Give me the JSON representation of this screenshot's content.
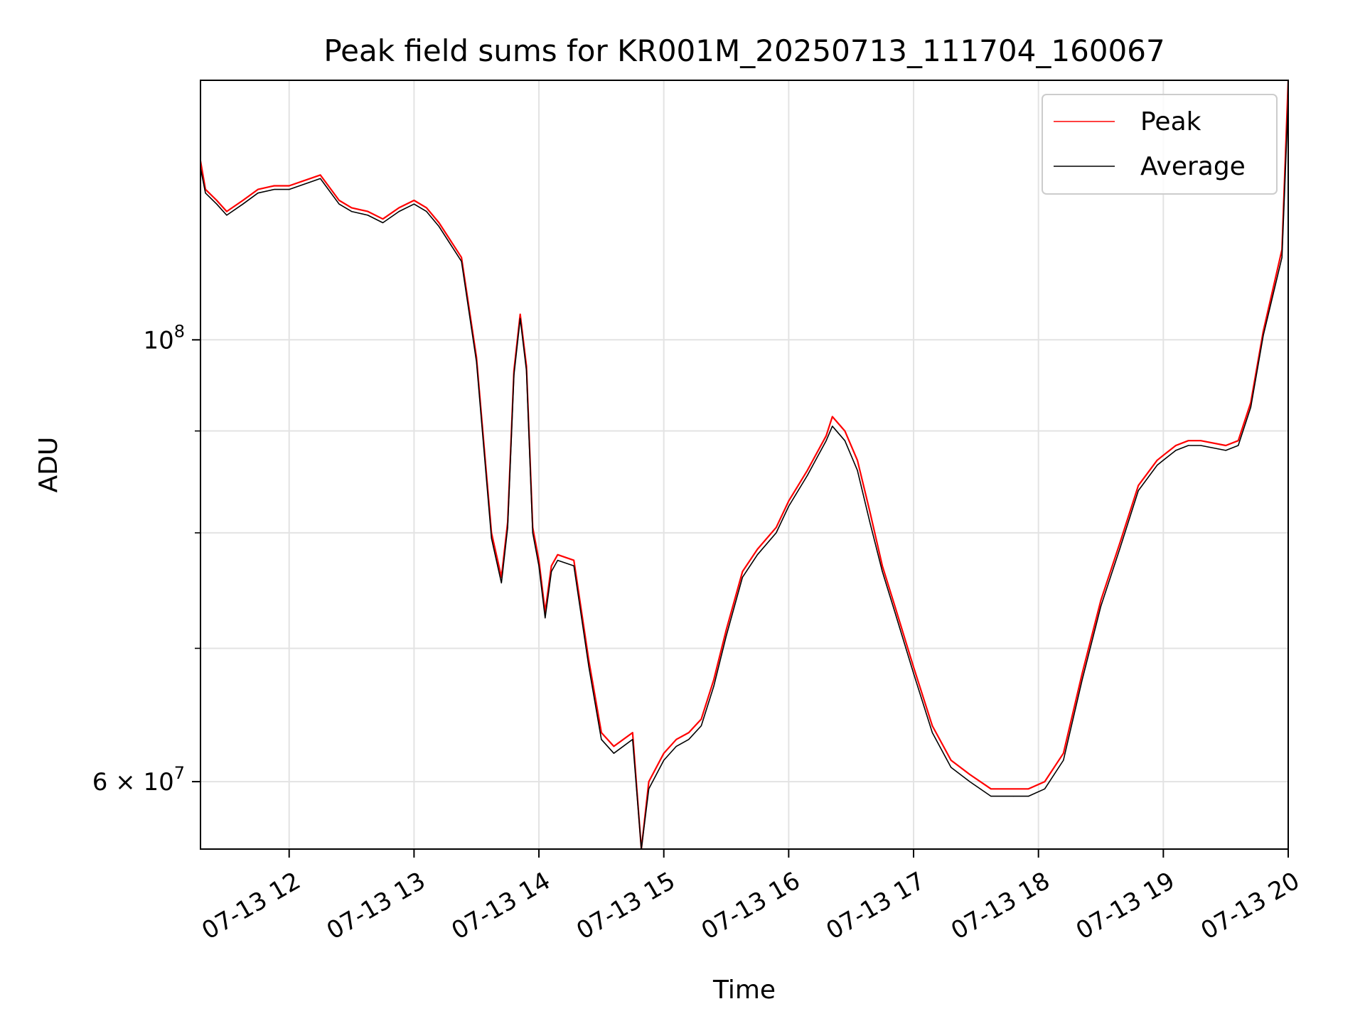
{
  "chart_data": {
    "type": "line",
    "title": "Peak field sums for KR001M_20250713_111704_160067",
    "xlabel": "Time",
    "ylabel": "ADU",
    "x_unit": "hours (2025-07-13, HH)",
    "xlim": [
      11.29,
      20.0
    ],
    "ylim": [
      55500000,
      135000000
    ],
    "yscale": "log",
    "grid": true,
    "legend_position": "top-right",
    "x_ticks": [
      {
        "value": 12,
        "label": "07-13 12"
      },
      {
        "value": 13,
        "label": "07-13 13"
      },
      {
        "value": 14,
        "label": "07-13 14"
      },
      {
        "value": 15,
        "label": "07-13 15"
      },
      {
        "value": 16,
        "label": "07-13 16"
      },
      {
        "value": 17,
        "label": "07-13 17"
      },
      {
        "value": 18,
        "label": "07-13 18"
      },
      {
        "value": 19,
        "label": "07-13 19"
      },
      {
        "value": 20,
        "label": "07-13 20"
      }
    ],
    "y_major_ticks": [
      {
        "value": 60000000,
        "mantissa": "6",
        "exponent": "7"
      },
      {
        "value": 100000000,
        "mantissa": "",
        "exponent": "8"
      }
    ],
    "y_minor_ticks": [
      70000000,
      80000000,
      90000000
    ],
    "series": [
      {
        "name": "Peak",
        "color": "#ff0000",
        "x": [
          11.29,
          11.33,
          11.42,
          11.5,
          11.63,
          11.75,
          11.88,
          12.0,
          12.25,
          12.4,
          12.5,
          12.63,
          12.75,
          12.88,
          13.0,
          13.1,
          13.2,
          13.38,
          13.5,
          13.62,
          13.7,
          13.75,
          13.8,
          13.85,
          13.9,
          13.95,
          14.0,
          14.05,
          14.1,
          14.15,
          14.28,
          14.4,
          14.5,
          14.6,
          14.75,
          14.82,
          14.88,
          15.0,
          15.1,
          15.2,
          15.3,
          15.4,
          15.5,
          15.63,
          15.75,
          15.9,
          16.0,
          16.15,
          16.3,
          16.35,
          16.45,
          16.55,
          16.65,
          16.75,
          16.85,
          17.0,
          17.15,
          17.3,
          17.45,
          17.62,
          17.8,
          17.92,
          18.05,
          18.2,
          18.35,
          18.5,
          18.65,
          18.8,
          18.95,
          19.0,
          19.1,
          19.2,
          19.3,
          19.5,
          19.6,
          19.7,
          19.8,
          19.95,
          20.0
        ],
        "y": [
          123000000,
          119000000,
          117500000,
          116000000,
          117500000,
          119000000,
          119500000,
          119500000,
          121000000,
          117500000,
          116500000,
          116000000,
          115000000,
          116500000,
          117500000,
          116500000,
          114500000,
          110000000,
          98000000,
          80000000,
          76000000,
          81000000,
          96500000,
          103000000,
          97000000,
          80500000,
          77500000,
          73000000,
          77000000,
          78000000,
          77500000,
          69000000,
          63500000,
          62500000,
          63500000,
          55500000,
          60000000,
          62000000,
          63000000,
          63500000,
          64500000,
          67500000,
          71500000,
          76500000,
          78500000,
          80500000,
          83000000,
          86000000,
          89500000,
          91500000,
          90000000,
          87000000,
          82000000,
          77000000,
          73500000,
          68500000,
          64000000,
          61500000,
          60500000,
          59500000,
          59500000,
          59500000,
          60000000,
          62000000,
          68000000,
          74000000,
          79000000,
          84500000,
          87000000,
          87500000,
          88500000,
          89000000,
          89000000,
          88500000,
          89000000,
          93000000,
          101000000,
          111000000,
          135000000
        ]
      },
      {
        "name": "Average",
        "color": "#000000",
        "x": [
          11.29,
          11.33,
          11.42,
          11.5,
          11.63,
          11.75,
          11.88,
          12.0,
          12.25,
          12.4,
          12.5,
          12.63,
          12.75,
          12.88,
          13.0,
          13.1,
          13.2,
          13.38,
          13.5,
          13.62,
          13.7,
          13.75,
          13.8,
          13.85,
          13.9,
          13.95,
          14.0,
          14.05,
          14.1,
          14.15,
          14.28,
          14.4,
          14.5,
          14.6,
          14.75,
          14.82,
          14.88,
          15.0,
          15.1,
          15.2,
          15.3,
          15.4,
          15.5,
          15.63,
          15.75,
          15.9,
          16.0,
          16.15,
          16.3,
          16.35,
          16.45,
          16.55,
          16.65,
          16.75,
          16.85,
          17.0,
          17.15,
          17.3,
          17.45,
          17.62,
          17.8,
          17.92,
          18.05,
          18.2,
          18.35,
          18.5,
          18.65,
          18.8,
          18.95,
          19.0,
          19.1,
          19.2,
          19.3,
          19.5,
          19.6,
          19.7,
          19.8,
          19.95,
          20.0
        ],
        "y": [
          122000000,
          118500000,
          117000000,
          115500000,
          117000000,
          118500000,
          119000000,
          119000000,
          120500000,
          117000000,
          116000000,
          115500000,
          114500000,
          116000000,
          117000000,
          116000000,
          114000000,
          109500000,
          97500000,
          79500000,
          75500000,
          80500000,
          96000000,
          102500000,
          96500000,
          80000000,
          77000000,
          72500000,
          76500000,
          77500000,
          77000000,
          68500000,
          63000000,
          62000000,
          63000000,
          55500000,
          59500000,
          61500000,
          62500000,
          63000000,
          64000000,
          67000000,
          71000000,
          76000000,
          78000000,
          80000000,
          82500000,
          85500000,
          89000000,
          90500000,
          89000000,
          86000000,
          81000000,
          76500000,
          73000000,
          68000000,
          63500000,
          61000000,
          60000000,
          59000000,
          59000000,
          59000000,
          59500000,
          61500000,
          67500000,
          73500000,
          78500000,
          84000000,
          86500000,
          87000000,
          88000000,
          88500000,
          88500000,
          88000000,
          88500000,
          92500000,
          100500000,
          110000000,
          132000000
        ]
      }
    ]
  }
}
